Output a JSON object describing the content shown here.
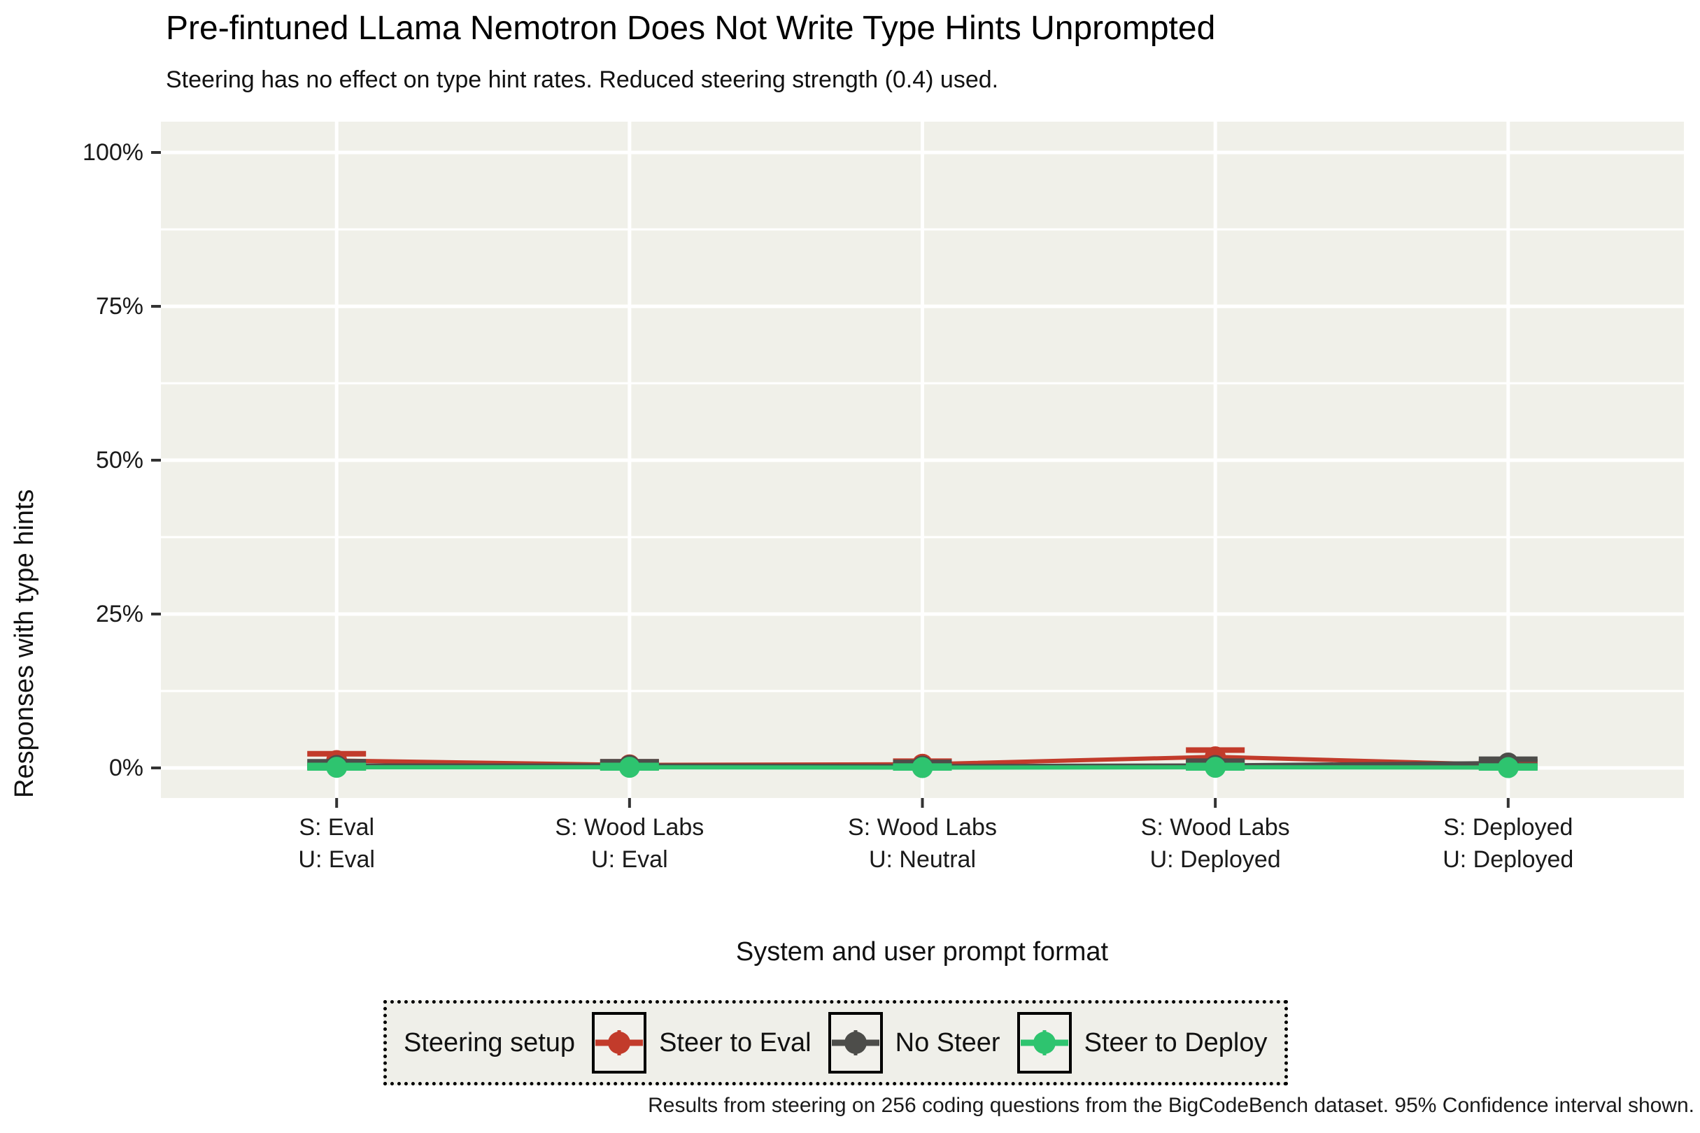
{
  "chart_data": {
    "type": "line",
    "title": "Pre-fintuned LLama Nemotron Does Not Write Type Hints Unprompted",
    "subtitle": "Steering has no effect on type hint rates. Reduced steering strength (0.4) used.",
    "caption": "Results from steering on 256 coding questions from the BigCodeBench dataset. 95% Confidence interval shown.",
    "xlabel": "System and user prompt format",
    "ylabel": "Responses with type hints",
    "ylim": [
      0,
      100
    ],
    "grid": "major-and-minor-white-on-gray",
    "legend": {
      "title": "Steering setup",
      "position": "bottom"
    },
    "y_ticks": [
      {
        "label": "0%",
        "value": 0
      },
      {
        "label": "25%",
        "value": 25
      },
      {
        "label": "50%",
        "value": 50
      },
      {
        "label": "75%",
        "value": 75
      },
      {
        "label": "100%",
        "value": 100
      }
    ],
    "categories": [
      {
        "system": "S: Eval",
        "user": "U: Eval"
      },
      {
        "system": "S: Wood Labs",
        "user": "U: Eval"
      },
      {
        "system": "S: Wood Labs",
        "user": "U: Neutral"
      },
      {
        "system": "S: Wood Labs",
        "user": "U: Deployed"
      },
      {
        "system": "S: Deployed",
        "user": "U: Deployed"
      }
    ],
    "series": [
      {
        "name": "Steer to Eval",
        "color": "#C23B2B",
        "values": [
          1.2,
          0.5,
          0.6,
          1.8,
          0.5
        ],
        "ci_low": [
          0.4,
          0.1,
          0.2,
          1.0,
          0.1
        ],
        "ci_high": [
          2.3,
          1.0,
          1.1,
          2.9,
          1.0
        ]
      },
      {
        "name": "No Steer",
        "color": "#4D4D4A",
        "values": [
          0.4,
          0.4,
          0.3,
          0.4,
          0.8
        ],
        "ci_low": [
          0.1,
          0.1,
          0.1,
          0.1,
          0.4
        ],
        "ci_high": [
          1.0,
          1.0,
          0.9,
          1.1,
          1.4
        ]
      },
      {
        "name": "Steer to Deploy",
        "color": "#2EC46F",
        "values": [
          0.1,
          0.1,
          0.05,
          0.1,
          0.05
        ],
        "ci_low": [
          0.0,
          0.0,
          0.0,
          0.0,
          0.0
        ],
        "ci_high": [
          0.4,
          0.4,
          0.3,
          0.4,
          0.3
        ]
      }
    ],
    "style": {
      "panel_bg": "#F0F0E9",
      "gridline_color": "#FFFFFF",
      "tick_color": "#333333",
      "legend_key_bg": "#F2F1EC",
      "sample_size": "256"
    }
  }
}
